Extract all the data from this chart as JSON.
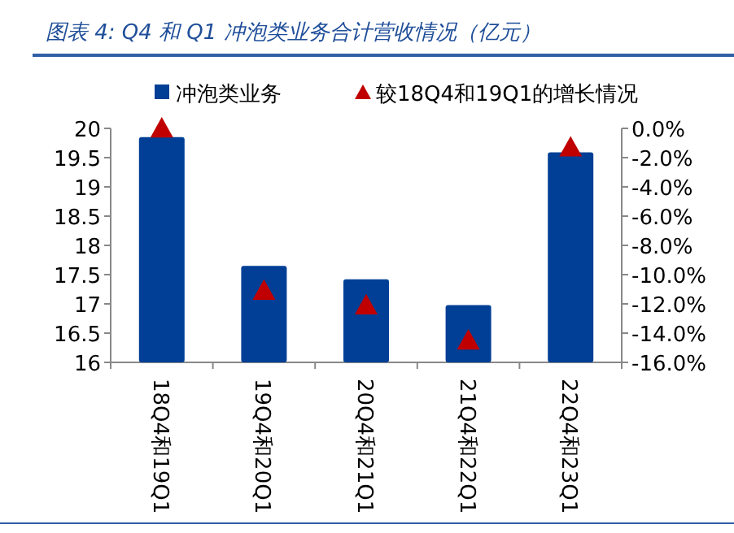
{
  "chart_data": {
    "type": "bar",
    "title": "图表 4:  Q4 和 Q1 冲泡类业务合计营收情况（亿元）",
    "categories": [
      "18Q4和19Q1",
      "19Q4和20Q1",
      "20Q4和21Q1",
      "21Q4和22Q1",
      "22Q4和23Q1"
    ],
    "series": [
      {
        "name": "冲泡类业务",
        "color": "#003f95",
        "values": [
          19.85,
          17.65,
          17.42,
          16.98,
          19.59
        ]
      },
      {
        "name": "较18Q4和19Q1的增长情况",
        "type": "scatter",
        "axis": "y2",
        "marker": "triangle",
        "color": "#c00000",
        "values": [
          0,
          -11.1,
          -12.1,
          -14.5,
          -1.3
        ]
      }
    ],
    "ylim": [
      16,
      20
    ],
    "yticks": [
      16,
      16.5,
      17,
      17.5,
      18,
      18.5,
      19,
      19.5,
      20
    ],
    "y2lim": [
      -16,
      0
    ],
    "y2ticks": [
      {
        "value": 0,
        "label": "0.0%"
      },
      {
        "value": -2,
        "label": "-2.0%"
      },
      {
        "value": -4,
        "label": "-4.0%"
      },
      {
        "value": -6,
        "label": "-6.0%"
      },
      {
        "value": -8,
        "label": "-8.0%"
      },
      {
        "value": -10,
        "label": "-10.0%"
      },
      {
        "value": -12,
        "label": "-12.0%"
      },
      {
        "value": -14,
        "label": "-14.0%"
      },
      {
        "value": -16,
        "label": "-16.0%"
      }
    ],
    "grid": false,
    "legend": "top"
  }
}
